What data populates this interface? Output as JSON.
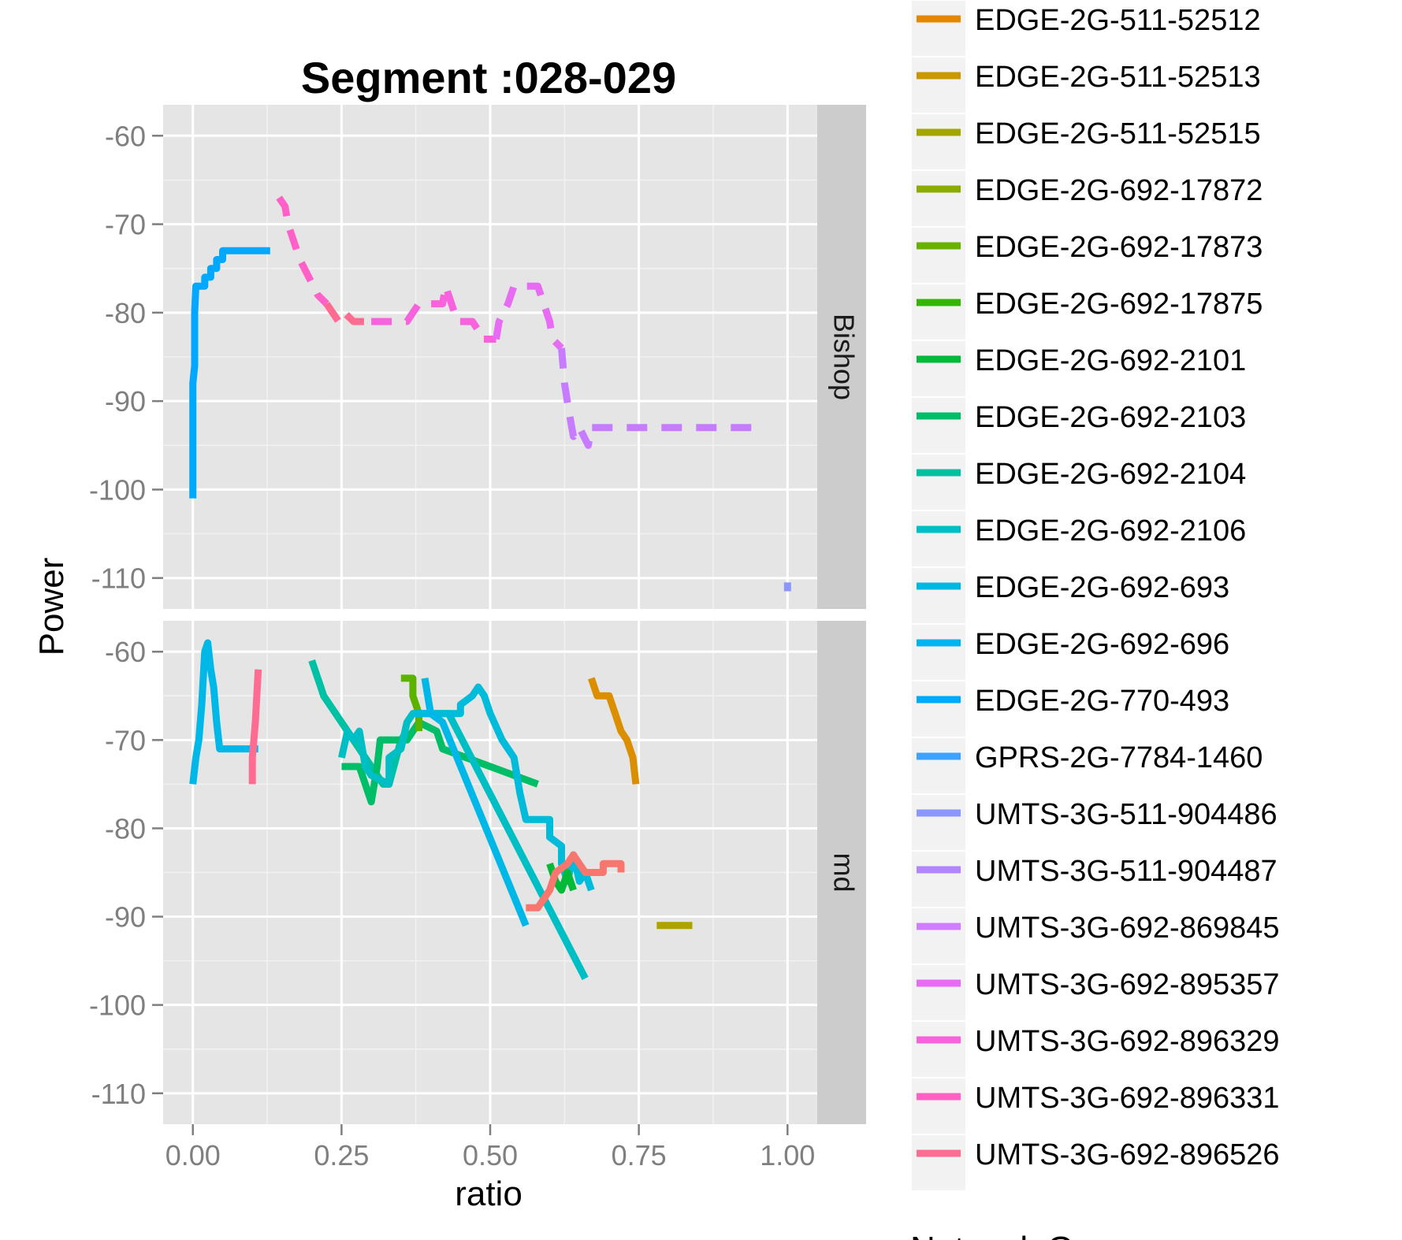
{
  "chart_data": {
    "type": "line",
    "title": "Segment :028-029",
    "xlabel": "ratio",
    "ylabel": "Power",
    "xlim": [
      -0.05,
      1.05
    ],
    "ylim": [
      -113.5,
      -56.5
    ],
    "x_ticks": [
      0.0,
      0.25,
      0.5,
      0.75,
      1.0
    ],
    "x_tick_labels": [
      "0.00",
      "0.25",
      "0.50",
      "0.75",
      "1.00"
    ],
    "y_ticks": [
      -60,
      -70,
      -80,
      -90,
      -100,
      -110
    ],
    "y_tick_labels": [
      "-60",
      "-70",
      "-80",
      "-90",
      "-100",
      "-110"
    ],
    "grid": true,
    "legend_position": "right",
    "legend_cutoff_title": "Network Ge",
    "panels": [
      {
        "label": "Bishop",
        "series": [
          {
            "name": "EDGE-2G-770-493",
            "color": "#00A9FF",
            "dash": false,
            "points": [
              [
                0.0,
                -101
              ],
              [
                0.0,
                -95
              ],
              [
                0.0,
                -88
              ],
              [
                0.003,
                -86
              ],
              [
                0.003,
                -80
              ],
              [
                0.005,
                -77
              ],
              [
                0.02,
                -77
              ],
              [
                0.02,
                -76
              ],
              [
                0.03,
                -76
              ],
              [
                0.03,
                -75
              ],
              [
                0.04,
                -75
              ],
              [
                0.04,
                -74
              ],
              [
                0.05,
                -74
              ],
              [
                0.05,
                -73
              ],
              [
                0.13,
                -73
              ]
            ]
          },
          {
            "name": "UMTS-3G-692-896331",
            "color": "#FF61C9",
            "dash": true,
            "points": [
              [
                0.145,
                -67
              ],
              [
                0.155,
                -68
              ],
              [
                0.16,
                -70
              ],
              [
                0.17,
                -72
              ],
              [
                0.18,
                -74
              ],
              [
                0.195,
                -76
              ],
              [
                0.21,
                -78
              ],
              [
                0.225,
                -79
              ]
            ]
          },
          {
            "name": "UMTS-3G-692-896526",
            "color": "#FF6C91",
            "dash": true,
            "points": [
              [
                0.225,
                -79
              ],
              [
                0.245,
                -81
              ],
              [
                0.255,
                -80
              ],
              [
                0.27,
                -81
              ],
              [
                0.3,
                -81
              ]
            ]
          },
          {
            "name": "UMTS-3G-692-896329",
            "color": "#F962DD",
            "dash": true,
            "points": [
              [
                0.3,
                -81
              ],
              [
                0.36,
                -81
              ],
              [
                0.37,
                -80
              ],
              [
                0.38,
                -79
              ],
              [
                0.42,
                -79
              ],
              [
                0.425,
                -77
              ],
              [
                0.44,
                -80
              ],
              [
                0.445,
                -81
              ],
              [
                0.47,
                -81
              ],
              [
                0.48,
                -82
              ],
              [
                0.485,
                -83
              ],
              [
                0.51,
                -83
              ]
            ]
          },
          {
            "name": "UMTS-3G-692-895357",
            "color": "#E76BF3",
            "dash": true,
            "points": [
              [
                0.51,
                -83
              ],
              [
                0.515,
                -81
              ],
              [
                0.53,
                -79
              ],
              [
                0.54,
                -77
              ],
              [
                0.58,
                -77
              ],
              [
                0.59,
                -79
              ],
              [
                0.6,
                -81
              ],
              [
                0.605,
                -83
              ],
              [
                0.62,
                -84
              ]
            ]
          },
          {
            "name": "UMTS-3G-692-869845",
            "color": "#C77CFF",
            "dash": true,
            "points": [
              [
                0.62,
                -84
              ],
              [
                0.625,
                -88
              ],
              [
                0.632,
                -91
              ],
              [
                0.64,
                -94
              ],
              [
                0.65,
                -93
              ],
              [
                0.665,
                -95
              ],
              [
                0.67,
                -93
              ],
              [
                0.94,
                -93
              ]
            ]
          },
          {
            "name": "UMTS-3G-511-904486",
            "color": "#8C96FF",
            "dash": true,
            "points": [
              [
                1.0,
                -110.5
              ],
              [
                1.0,
                -111.5
              ]
            ]
          }
        ]
      },
      {
        "label": "md",
        "series": [
          {
            "name": "EDGE-2G-692-696",
            "color": "#00B8E7",
            "dash": false,
            "points": [
              [
                0.0,
                -75
              ],
              [
                0.005,
                -72
              ],
              [
                0.01,
                -70
              ],
              [
                0.015,
                -66
              ],
              [
                0.02,
                -60
              ],
              [
                0.025,
                -59
              ],
              [
                0.03,
                -62
              ],
              [
                0.035,
                -64
              ],
              [
                0.04,
                -68
              ],
              [
                0.045,
                -71
              ],
              [
                0.11,
                -71
              ]
            ]
          },
          {
            "name": "UMTS-3G-692-896526",
            "color": "#FF6C91",
            "dash": false,
            "points": [
              [
                0.1,
                -75
              ],
              [
                0.1,
                -72
              ],
              [
                0.105,
                -68
              ],
              [
                0.11,
                -62
              ]
            ]
          },
          {
            "name": "EDGE-2G-692-2104",
            "color": "#00C1A3",
            "dash": false,
            "points": [
              [
                0.2,
                -61
              ],
              [
                0.21,
                -63
              ],
              [
                0.215,
                -64
              ],
              [
                0.22,
                -65
              ],
              [
                0.23,
                -66
              ],
              [
                0.25,
                -68
              ],
              [
                0.27,
                -70
              ],
              [
                0.29,
                -72
              ],
              [
                0.31,
                -74
              ],
              [
                0.32,
                -75
              ],
              [
                0.33,
                -75
              ],
              [
                0.35,
                -70
              ],
              [
                0.36,
                -69
              ]
            ]
          },
          {
            "name": "EDGE-2G-692-2103",
            "color": "#00BE67",
            "dash": false,
            "points": [
              [
                0.25,
                -73
              ],
              [
                0.28,
                -73
              ],
              [
                0.29,
                -75
              ],
              [
                0.3,
                -77
              ],
              [
                0.31,
                -73
              ],
              [
                0.315,
                -70
              ],
              [
                0.36,
                -70
              ],
              [
                0.38,
                -68
              ],
              [
                0.41,
                -69
              ],
              [
                0.42,
                -71
              ],
              [
                0.58,
                -75
              ]
            ]
          },
          {
            "name": "EDGE-2G-692-17873",
            "color": "#5BB300",
            "dash": false,
            "points": [
              [
                0.35,
                -63
              ],
              [
                0.37,
                -63
              ],
              [
                0.37,
                -65
              ],
              [
                0.38,
                -67
              ],
              [
                0.38,
                -69
              ]
            ]
          },
          {
            "name": "EDGE-2G-692-2106",
            "color": "#00BFC4",
            "dash": false,
            "points": [
              [
                0.25,
                -72
              ],
              [
                0.26,
                -69
              ],
              [
                0.27,
                -70
              ],
              [
                0.28,
                -69
              ],
              [
                0.29,
                -73
              ],
              [
                0.3,
                -74
              ],
              [
                0.33,
                -75
              ],
              [
                0.33,
                -72
              ],
              [
                0.35,
                -71
              ],
              [
                0.36,
                -68
              ],
              [
                0.37,
                -67
              ],
              [
                0.43,
                -67
              ],
              [
                0.66,
                -97
              ]
            ]
          },
          {
            "name": "EDGE-2G-692-693",
            "color": "#00BBDA",
            "dash": false,
            "points": [
              [
                0.37,
                -67
              ],
              [
                0.45,
                -67
              ],
              [
                0.45,
                -66
              ],
              [
                0.47,
                -65
              ],
              [
                0.48,
                -64
              ],
              [
                0.49,
                -65
              ],
              [
                0.5,
                -67
              ],
              [
                0.52,
                -70
              ],
              [
                0.54,
                -72
              ],
              [
                0.55,
                -76
              ],
              [
                0.56,
                -79
              ],
              [
                0.6,
                -79
              ],
              [
                0.6,
                -81
              ],
              [
                0.62,
                -82
              ],
              [
                0.62,
                -84
              ],
              [
                0.63,
                -86
              ],
              [
                0.64,
                -83
              ],
              [
                0.65,
                -86
              ],
              [
                0.66,
                -85
              ],
              [
                0.67,
                -87
              ]
            ]
          },
          {
            "name": "EDGE-2G-692-2101",
            "color": "#00BA38",
            "dash": false,
            "points": [
              [
                0.6,
                -84
              ],
              [
                0.61,
                -86
              ],
              [
                0.62,
                -87
              ],
              [
                0.63,
                -85
              ],
              [
                0.64,
                -87
              ]
            ]
          },
          {
            "name": "EDGE-2G-692-696",
            "color": "#00B8E7",
            "dash": false,
            "points": [
              [
                0.39,
                -63
              ],
              [
                0.4,
                -67
              ],
              [
                0.42,
                -68
              ],
              [
                0.56,
                -91
              ]
            ]
          },
          {
            "name": "EDGE-2G-511-52512",
            "color": "#F8766D",
            "dash": false,
            "points": [
              [
                0.56,
                -89
              ],
              [
                0.58,
                -89
              ],
              [
                0.6,
                -87
              ],
              [
                0.61,
                -85
              ],
              [
                0.63,
                -84
              ],
              [
                0.64,
                -83
              ],
              [
                0.66,
                -85
              ],
              [
                0.69,
                -85
              ],
              [
                0.69,
                -84
              ],
              [
                0.72,
                -84
              ],
              [
                0.72,
                -85
              ]
            ]
          },
          {
            "name": "EDGE-2G-511-52513",
            "color": "#DB8E00",
            "dash": false,
            "points": [
              [
                0.67,
                -63
              ],
              [
                0.68,
                -65
              ],
              [
                0.7,
                -65
              ],
              [
                0.71,
                -67
              ],
              [
                0.72,
                -69
              ],
              [
                0.73,
                -70
              ],
              [
                0.74,
                -72
              ],
              [
                0.745,
                -75
              ]
            ]
          },
          {
            "name": "EDGE-2G-511-52515",
            "color": "#AEA200",
            "dash": false,
            "points": [
              [
                0.78,
                -91
              ],
              [
                0.84,
                -91
              ]
            ]
          }
        ]
      }
    ],
    "legend": [
      {
        "label": "EDGE-2G-511-52512",
        "color": "#E58700"
      },
      {
        "label": "EDGE-2G-511-52513",
        "color": "#C99800"
      },
      {
        "label": "EDGE-2G-511-52515",
        "color": "#A3A500"
      },
      {
        "label": "EDGE-2G-692-17872",
        "color": "#8BAB00"
      },
      {
        "label": "EDGE-2G-692-17873",
        "color": "#6BB100"
      },
      {
        "label": "EDGE-2G-692-17875",
        "color": "#35B400"
      },
      {
        "label": "EDGE-2G-692-2101",
        "color": "#00BA38"
      },
      {
        "label": "EDGE-2G-692-2103",
        "color": "#00BE67"
      },
      {
        "label": "EDGE-2G-692-2104",
        "color": "#00C19F"
      },
      {
        "label": "EDGE-2G-692-2106",
        "color": "#00BFC4"
      },
      {
        "label": "EDGE-2G-692-693",
        "color": "#00B9E3"
      },
      {
        "label": "EDGE-2G-692-696",
        "color": "#00B4F0"
      },
      {
        "label": "EDGE-2G-770-493",
        "color": "#00A9FF"
      },
      {
        "label": "GPRS-2G-7784-1460",
        "color": "#3DA1FF"
      },
      {
        "label": "UMTS-3G-511-904486",
        "color": "#8C96FF"
      },
      {
        "label": "UMTS-3G-511-904487",
        "color": "#B385FF"
      },
      {
        "label": "UMTS-3G-692-869845",
        "color": "#D07DFF"
      },
      {
        "label": "UMTS-3G-692-895357",
        "color": "#E76BF3"
      },
      {
        "label": "UMTS-3G-692-896329",
        "color": "#F962DD"
      },
      {
        "label": "UMTS-3G-692-896331",
        "color": "#FF61C3"
      },
      {
        "label": "UMTS-3G-692-896526",
        "color": "#FF6C91"
      }
    ]
  }
}
